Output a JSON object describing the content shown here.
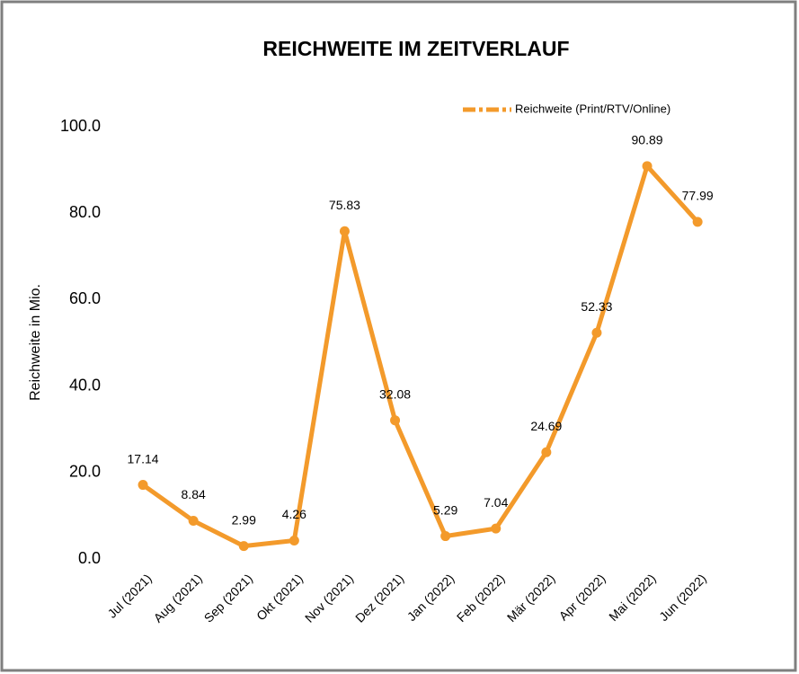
{
  "chart_data": {
    "type": "line",
    "title": "REICHWEITE IM ZEITVERLAUF",
    "y_label": "Reichweite in Mio.",
    "categories": [
      "Jul (2021)",
      "Aug (2021)",
      "Sep (2021)",
      "Okt (2021)",
      "Nov (2021)",
      "Dez (2021)",
      "Jan (2022)",
      "Feb (2022)",
      "Mär (2022)",
      "Apr (2022)",
      "Mai (2022)",
      "Jun (2022)"
    ],
    "series": [
      {
        "name": "Reichweite (Print/RTV/Online)",
        "color": "#f39a2b",
        "values": [
          17.14,
          8.84,
          2.99,
          4.26,
          75.83,
          32.08,
          5.29,
          7.04,
          24.69,
          52.33,
          90.89,
          77.99
        ]
      }
    ],
    "ylim": [
      0,
      100
    ],
    "yticks": [
      {
        "value": 0,
        "label": "0.0"
      },
      {
        "value": 20,
        "label": "20.0"
      },
      {
        "value": 40,
        "label": "40.0"
      },
      {
        "value": 60,
        "label": "60.0"
      },
      {
        "value": 80,
        "label": "80.0"
      },
      {
        "value": 100,
        "label": "100.0"
      }
    ],
    "grid": false,
    "legend": "top-right"
  }
}
